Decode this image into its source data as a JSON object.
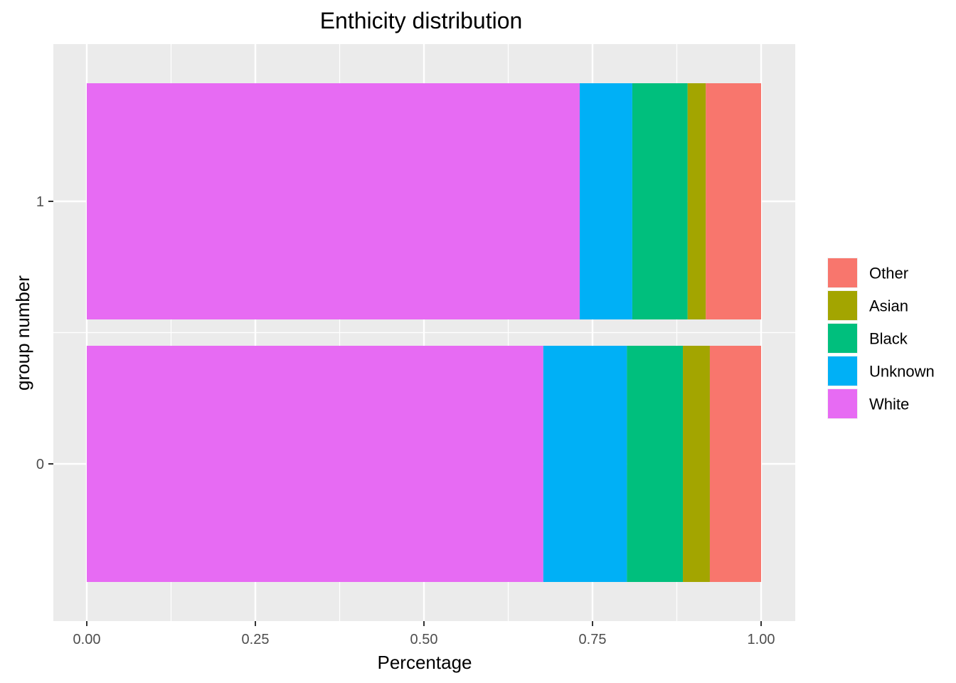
{
  "chart_data": {
    "type": "bar",
    "orientation": "horizontal",
    "stacked": true,
    "title": "Enthicity distribution",
    "xlabel": "Percentage",
    "ylabel": "group number",
    "xlim": [
      0,
      1
    ],
    "x_ticks": [
      "0.00",
      "0.25",
      "0.50",
      "0.75",
      "1.00"
    ],
    "categories": [
      "0",
      "1"
    ],
    "series": [
      {
        "name": "White",
        "color": "#E76BF3",
        "values": [
          0.677,
          0.731
        ]
      },
      {
        "name": "Unknown",
        "color": "#00B0F6",
        "values": [
          0.124,
          0.078
        ]
      },
      {
        "name": "Black",
        "color": "#00BF7D",
        "values": [
          0.083,
          0.082
        ]
      },
      {
        "name": "Asian",
        "color": "#A3A500",
        "values": [
          0.04,
          0.027
        ]
      },
      {
        "name": "Other",
        "color": "#F8766D",
        "values": [
          0.076,
          0.082
        ]
      }
    ],
    "legend_order": [
      "Other",
      "Asian",
      "Black",
      "Unknown",
      "White"
    ],
    "legend_position": "right",
    "grid": true
  }
}
